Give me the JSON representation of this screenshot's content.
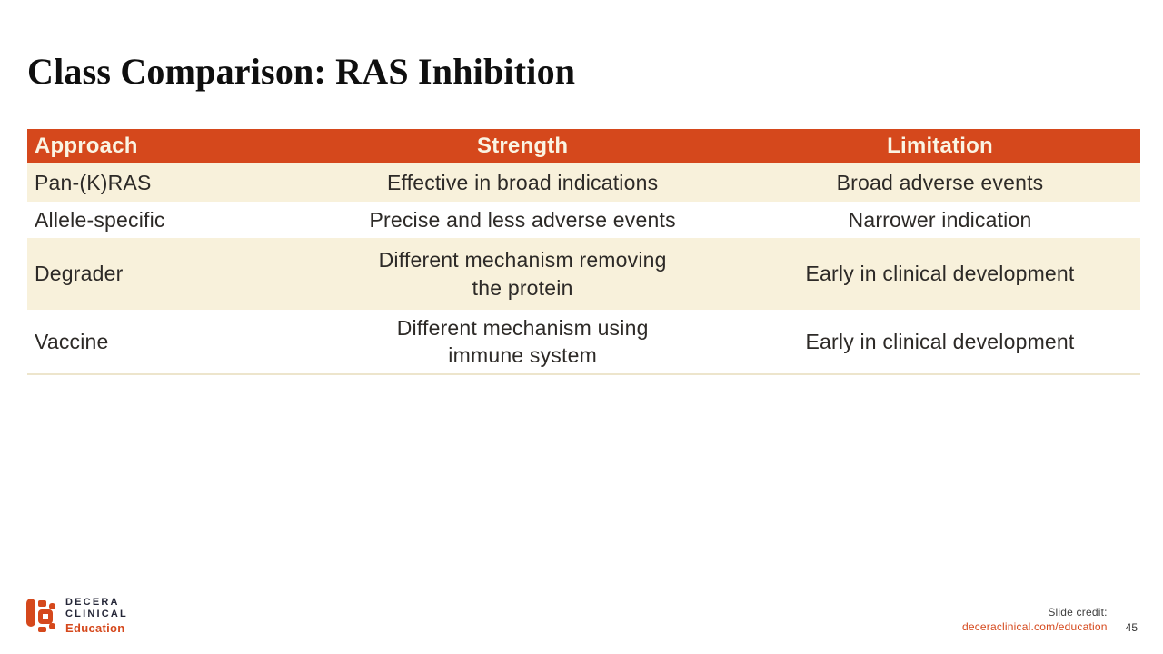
{
  "slide": {
    "title": "Class Comparison: RAS Inhibition"
  },
  "table": {
    "headers": [
      "Approach",
      "Strength",
      "Limitation"
    ],
    "rows": [
      {
        "approach": "Pan-(K)RAS",
        "strength": [
          "Effective in broad indications"
        ],
        "limitation": "Broad adverse events",
        "shaded": true
      },
      {
        "approach": "Allele-specific",
        "strength": [
          "Precise and less adverse events"
        ],
        "limitation": "Narrower indication",
        "shaded": false
      },
      {
        "approach": "Degrader",
        "strength": [
          "Different mechanism removing",
          "the protein"
        ],
        "limitation": "Early in clinical development",
        "shaded": true
      },
      {
        "approach": "Vaccine",
        "strength": [
          "Different mechanism using",
          "immune system"
        ],
        "limitation": "Early in clinical development",
        "shaded": false
      }
    ]
  },
  "footer": {
    "logo": {
      "mark_icon": "decera-logo-mark",
      "brand_line1": "DECERA",
      "brand_line2": "CLINICAL",
      "brand_line3": "Education"
    },
    "credit_label": "Slide credit:",
    "credit_link": "deceraclinical.com/education",
    "page_number": "45"
  },
  "colors": {
    "accent": "#D5481C",
    "cream": "#F8F1DB",
    "header-text": "#FAF4E3",
    "body-text": "#2D2A27"
  }
}
